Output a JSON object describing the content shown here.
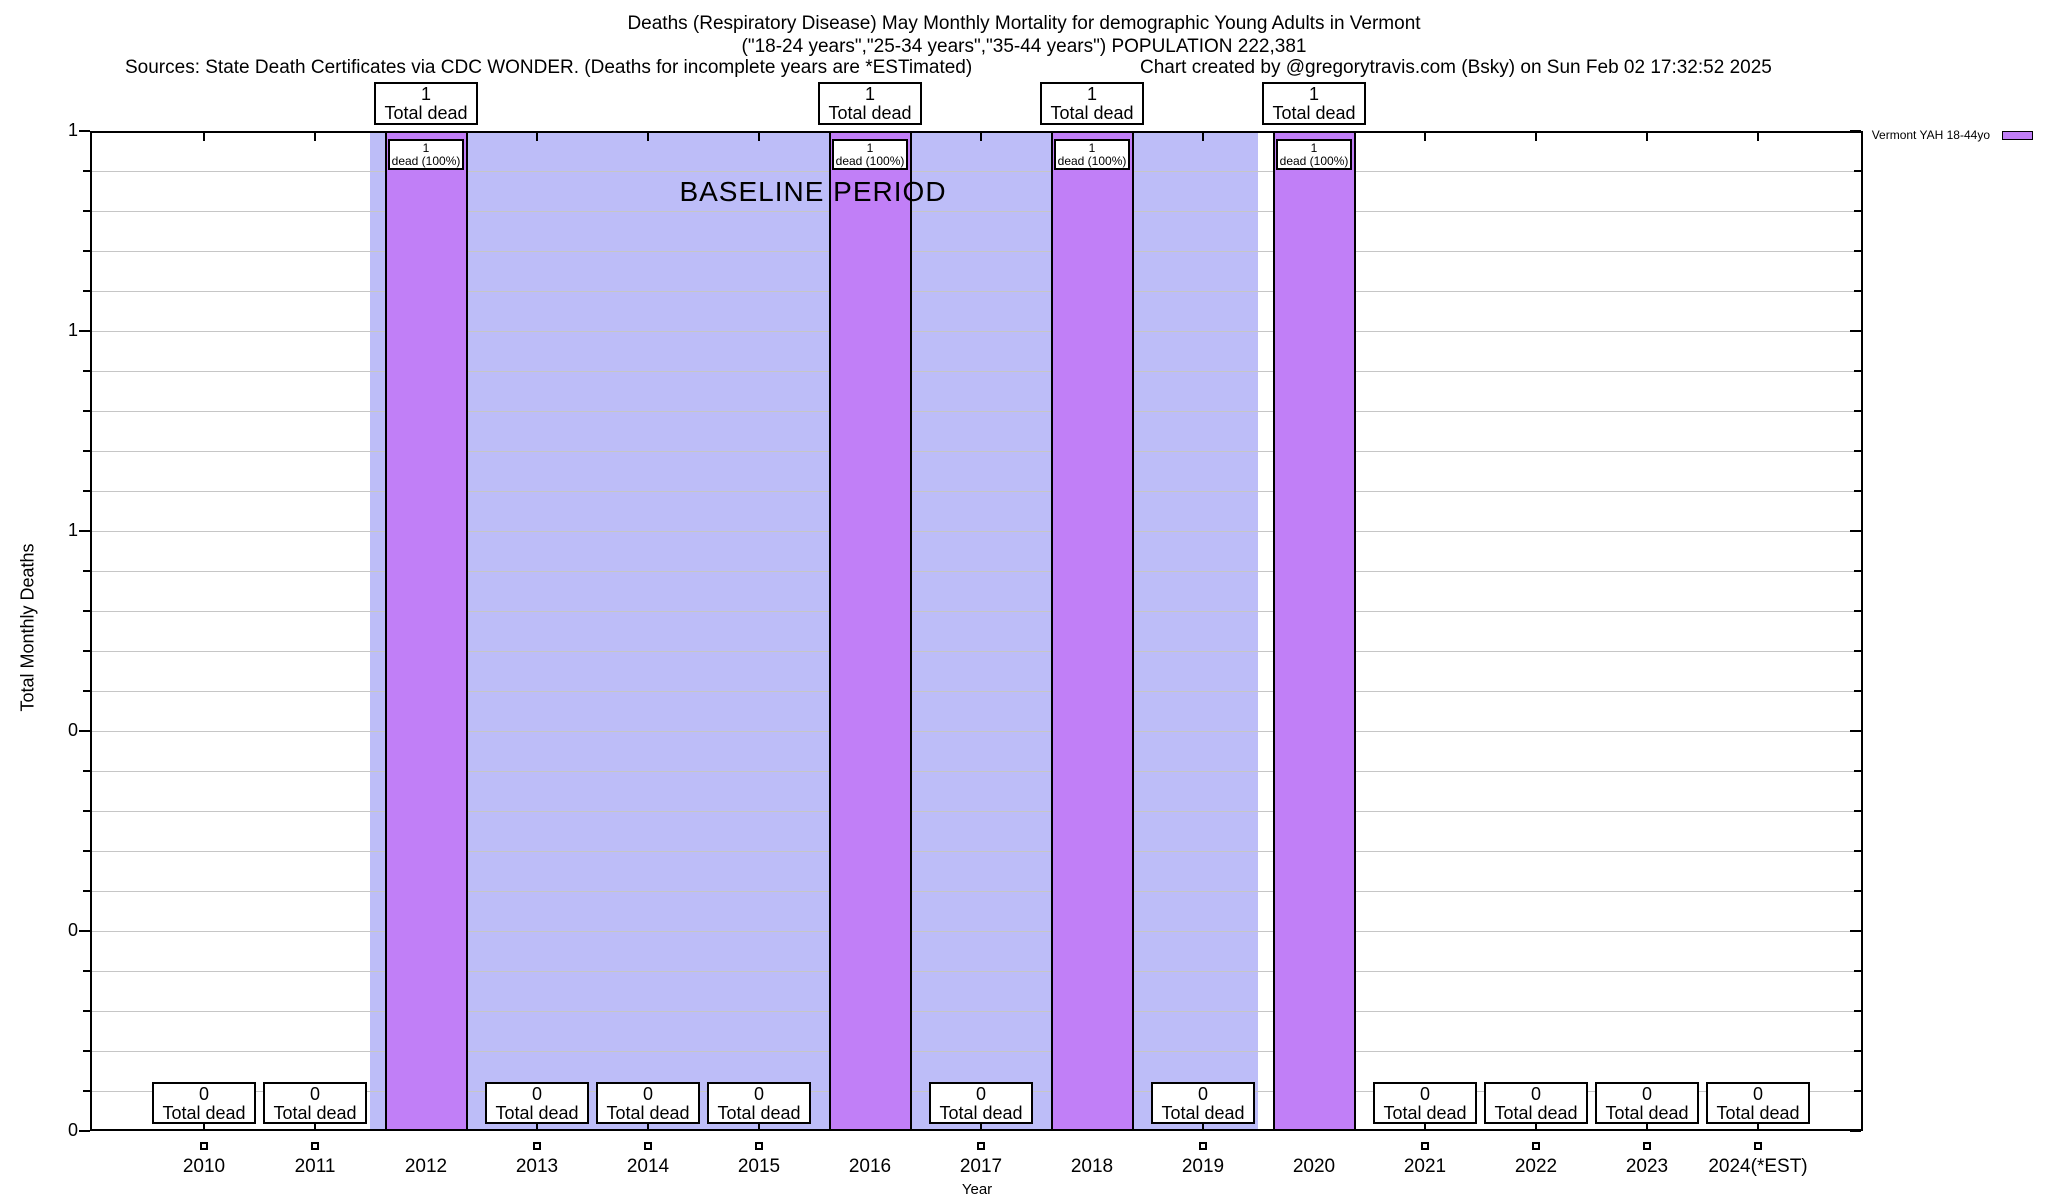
{
  "header": {
    "title_line1": "Deaths (Respiratory Disease) May Monthly Mortality for demographic Young Adults in Vermont",
    "title_line2": "(\"18-24 years\",\"25-34 years\",\"35-44 years\") POPULATION 222,381",
    "sources": "Sources: State Death Certificates via CDC WONDER. (Deaths for incomplete years are *ESTimated)",
    "credit": "Chart created by @gregorytravis.com (Bsky) on Sun Feb 02 17:32:52 2025"
  },
  "chart_data": {
    "type": "bar",
    "title": "Deaths (Respiratory Disease) May Monthly Mortality for demographic Young Adults in Vermont",
    "xlabel": "Year",
    "ylabel": "Total Monthly Deaths",
    "ylim": [
      0,
      1
    ],
    "categories": [
      "2010",
      "2011",
      "2012",
      "2013",
      "2014",
      "2015",
      "2016",
      "2017",
      "2018",
      "2019",
      "2020",
      "2021",
      "2022",
      "2023",
      "2024(*EST)"
    ],
    "series": [
      {
        "name": "Vermont YAH 18-44yo",
        "color": "#c17ff7",
        "values": [
          0,
          0,
          1,
          0,
          0,
          0,
          1,
          0,
          1,
          0,
          1,
          0,
          0,
          0,
          0
        ]
      }
    ],
    "ytick_labels": [
      "1",
      "1",
      "1",
      "0",
      "0",
      "0"
    ],
    "ytick_values": [
      1.0,
      0.8,
      0.6,
      0.4,
      0.2,
      0.0
    ],
    "grid": "on",
    "gridline_color": "#c6c6c6",
    "annotations": {
      "baseline_label": "BASELINE PERIOD",
      "baseline_region": {
        "start_year": "2012",
        "end_year": "2019",
        "color": "#bdbdf8"
      },
      "nonzero_top_box_label": "Total dead",
      "nonzero_inner_box_label": "dead (100%)",
      "zero_box_label": "Total dead"
    },
    "legend": {
      "position": "top-right-outside",
      "entries": [
        {
          "label": "Vermont YAH 18-44yo",
          "color": "#c17ff7"
        }
      ]
    }
  }
}
